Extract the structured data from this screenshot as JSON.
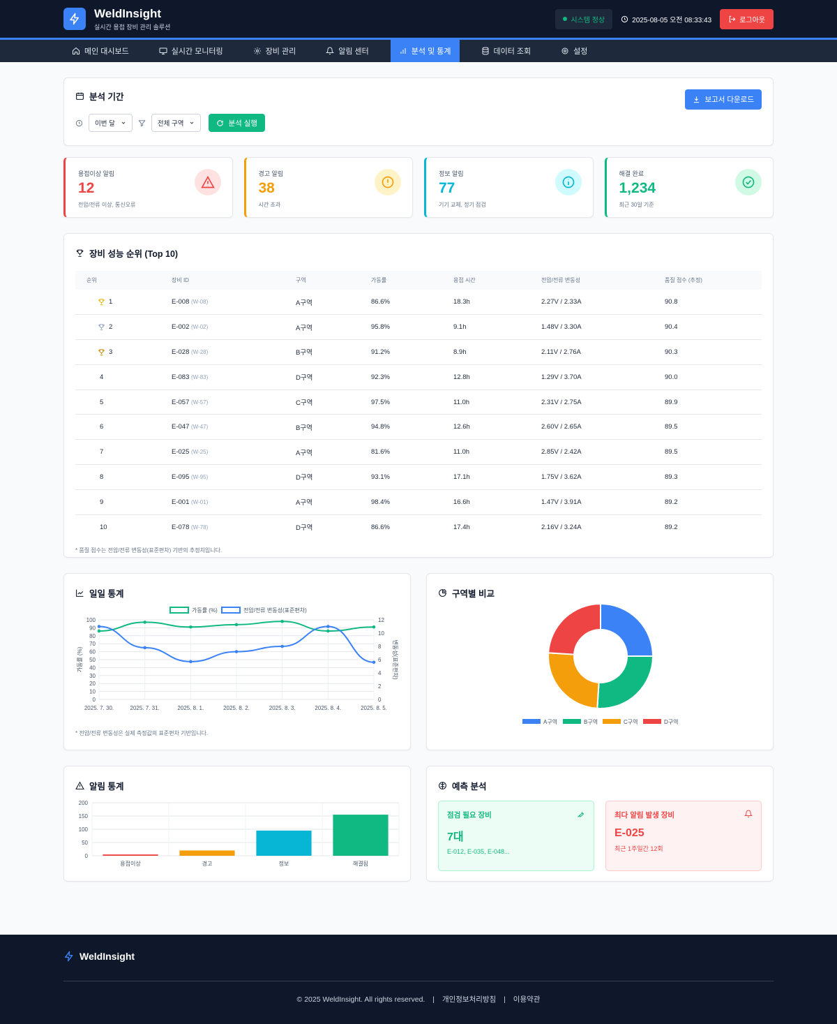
{
  "header": {
    "title": "WeldInsight",
    "subtitle": "실시간 용접 장비 관리 솔루션",
    "status": "시스템 정상",
    "datetime": "2025-08-05 오전 08:33:43",
    "logout": "로그아웃"
  },
  "nav": [
    {
      "label": "메인 대시보드",
      "icon": "home-icon"
    },
    {
      "label": "실시간 모니터링",
      "icon": "monitor-icon"
    },
    {
      "label": "장비 관리",
      "icon": "gear-icon"
    },
    {
      "label": "알림 센터",
      "icon": "bell-icon"
    },
    {
      "label": "분석 및 통계",
      "icon": "bar-chart-icon"
    },
    {
      "label": "데이터 조회",
      "icon": "database-icon"
    },
    {
      "label": "설정",
      "icon": "settings-icon"
    }
  ],
  "period": {
    "title": "분석 기간",
    "download": "보고서 다운로드",
    "period_select": "이번 달",
    "zone_select": "전체 구역",
    "run": "분석 실행"
  },
  "stats": [
    {
      "label": "용접이상 알림",
      "value": "12",
      "sub": "전압/전류 이상, 통신오류",
      "color": "#ef4444",
      "bg": "#fee2e2",
      "icon": "warning-triangle-icon"
    },
    {
      "label": "경고 알림",
      "value": "38",
      "sub": "시간 초과",
      "color": "#f59e0b",
      "bg": "#fef3c7",
      "icon": "alert-circle-icon"
    },
    {
      "label": "정보 알림",
      "value": "77",
      "sub": "기기 교체, 정기 점검",
      "color": "#06b6d4",
      "bg": "#cffafe",
      "icon": "info-icon"
    },
    {
      "label": "해결 완료",
      "value": "1,234",
      "sub": "최근 30일 기준",
      "color": "#10b981",
      "bg": "#d1fae5",
      "icon": "check-circle-icon"
    }
  ],
  "ranking": {
    "title": "장비 성능 순위 (Top 10)",
    "columns": [
      "순위",
      "장비 ID",
      "구역",
      "가동률",
      "용접 시간",
      "전압/전류 변동성",
      "품질 점수 (추정)"
    ],
    "rows": [
      {
        "rank": "1",
        "id": "E-008",
        "sub": "(W-08)",
        "zone": "A구역",
        "rate": "86.6%",
        "time": "18.3h",
        "var": "2.27V / 2.33A",
        "score": "90.8"
      },
      {
        "rank": "2",
        "id": "E-002",
        "sub": "(W-02)",
        "zone": "A구역",
        "rate": "95.8%",
        "time": "9.1h",
        "var": "1.48V / 3.30A",
        "score": "90.4"
      },
      {
        "rank": "3",
        "id": "E-028",
        "sub": "(W-28)",
        "zone": "B구역",
        "rate": "91.2%",
        "time": "8.9h",
        "var": "2.11V / 2.76A",
        "score": "90.3"
      },
      {
        "rank": "4",
        "id": "E-083",
        "sub": "(W-83)",
        "zone": "D구역",
        "rate": "92.3%",
        "time": "12.8h",
        "var": "1.29V / 3.70A",
        "score": "90.0"
      },
      {
        "rank": "5",
        "id": "E-057",
        "sub": "(W-57)",
        "zone": "C구역",
        "rate": "97.5%",
        "time": "11.0h",
        "var": "2.31V / 2.75A",
        "score": "89.9"
      },
      {
        "rank": "6",
        "id": "E-047",
        "sub": "(W-47)",
        "zone": "B구역",
        "rate": "94.8%",
        "time": "12.6h",
        "var": "2.60V / 2.65A",
        "score": "89.5"
      },
      {
        "rank": "7",
        "id": "E-025",
        "sub": "(W-25)",
        "zone": "A구역",
        "rate": "81.6%",
        "time": "11.0h",
        "var": "2.85V / 2.42A",
        "score": "89.5"
      },
      {
        "rank": "8",
        "id": "E-095",
        "sub": "(W-95)",
        "zone": "D구역",
        "rate": "93.1%",
        "time": "17.1h",
        "var": "1.75V / 3.62A",
        "score": "89.3"
      },
      {
        "rank": "9",
        "id": "E-001",
        "sub": "(W-01)",
        "zone": "A구역",
        "rate": "98.4%",
        "time": "16.6h",
        "var": "1.47V / 3.91A",
        "score": "89.2"
      },
      {
        "rank": "10",
        "id": "E-078",
        "sub": "(W-78)",
        "zone": "D구역",
        "rate": "86.6%",
        "time": "17.4h",
        "var": "2.16V / 3.24A",
        "score": "89.2"
      }
    ],
    "trophy_colors": [
      "#eab308",
      "#94a3b8",
      "#ca8a04"
    ],
    "note": "* 품질 점수는 전압/전류 변동성(표준편차) 기반의 추정치입니다."
  },
  "daily": {
    "title": "일일 통계",
    "note": "* 전압/전류 변동성은 실제 측정값의 표준편차 기반입니다."
  },
  "zone": {
    "title": "구역별 비교"
  },
  "alerts": {
    "title": "알림 통계"
  },
  "prediction": {
    "title": "예측 분석",
    "maintenance": {
      "title": "점검 필요 장비",
      "value": "7대",
      "sub": "E-012, E-035, E-048..."
    },
    "top_alert": {
      "title": "최다 알림 발생 장비",
      "value": "E-025",
      "sub": "최근 1주일간 12회"
    }
  },
  "footer": {
    "brand": "WeldInsight",
    "copyright": "© 2025 WeldInsight. All rights reserved.",
    "privacy": "개인정보처리방침",
    "terms": "이용약관"
  },
  "chart_data": [
    {
      "type": "line",
      "x": [
        "2025. 7. 30.",
        "2025. 7. 31.",
        "2025. 8. 1.",
        "2025. 8. 2.",
        "2025. 8. 3.",
        "2025. 8. 4.",
        "2025. 8. 5."
      ],
      "series": [
        {
          "name": "가동률 (%)",
          "axis": "left",
          "color": "#10b981",
          "values": [
            86,
            97,
            91,
            94,
            98,
            86,
            91
          ]
        },
        {
          "name": "전압/전류 변동성(표준편차)",
          "axis": "right",
          "color": "#3b82f6",
          "values": [
            11,
            7.8,
            5.7,
            7.2,
            8,
            11,
            5.6
          ]
        }
      ],
      "ylabel": "가동률 (%)",
      "y2label": "변동성(표준편차)",
      "ylim": [
        0,
        100
      ],
      "y2lim": [
        0,
        12
      ],
      "yticks": [
        0,
        10,
        20,
        30,
        40,
        50,
        60,
        70,
        80,
        90,
        100
      ],
      "y2ticks": [
        0,
        2,
        4,
        6,
        8,
        10,
        12
      ],
      "legend": "top"
    },
    {
      "type": "pie",
      "categories": [
        "A구역",
        "B구역",
        "C구역",
        "D구역"
      ],
      "values": [
        25,
        26,
        25,
        24
      ],
      "colors": [
        "#3b82f6",
        "#10b981",
        "#f59e0b",
        "#ef4444"
      ],
      "legend": "bottom"
    },
    {
      "type": "bar",
      "categories": [
        "용접이상",
        "경고",
        "정보",
        "해결됨"
      ],
      "values": [
        5,
        20,
        95,
        155
      ],
      "colors": [
        "#ef4444",
        "#f59e0b",
        "#06b6d4",
        "#10b981"
      ],
      "ylim": [
        0,
        200
      ],
      "yticks": [
        0,
        50,
        100,
        150,
        200
      ]
    }
  ]
}
